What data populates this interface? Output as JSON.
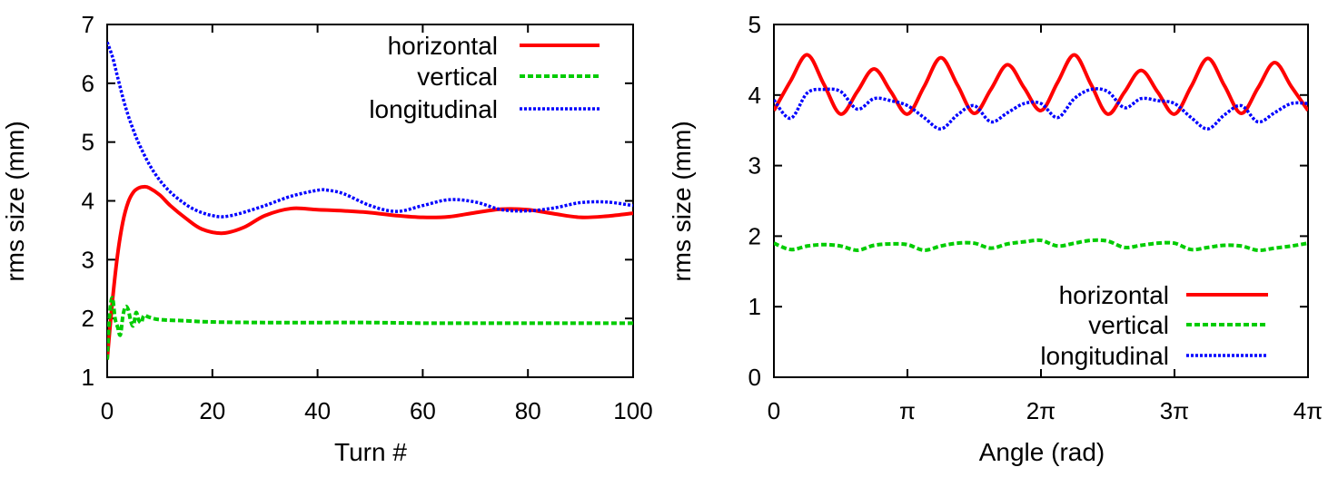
{
  "chart_data": [
    {
      "type": "line",
      "xlabel": "Turn #",
      "ylabel": "rms size (mm)",
      "xlim": [
        0,
        100
      ],
      "ylim": [
        1,
        7
      ],
      "xticks": [
        0,
        20,
        40,
        60,
        80,
        100
      ],
      "xtick_labels": [
        "0",
        "20",
        "40",
        "60",
        "80",
        "100"
      ],
      "yticks": [
        1,
        2,
        3,
        4,
        5,
        6,
        7
      ],
      "ytick_labels": [
        "1",
        "2",
        "3",
        "4",
        "5",
        "6",
        "7"
      ],
      "legend_position": "top-right",
      "series": [
        {
          "name": "horizontal",
          "color": "#ff0000",
          "style": "solid",
          "x": [
            0,
            1,
            2,
            3,
            4,
            5,
            6,
            7,
            8,
            10,
            12,
            15,
            18,
            22,
            26,
            30,
            35,
            40,
            45,
            50,
            55,
            60,
            65,
            70,
            75,
            80,
            85,
            90,
            95,
            100
          ],
          "y": [
            1.3,
            2.3,
            3.1,
            3.65,
            3.98,
            4.15,
            4.22,
            4.24,
            4.22,
            4.1,
            3.92,
            3.7,
            3.52,
            3.45,
            3.55,
            3.75,
            3.87,
            3.85,
            3.83,
            3.8,
            3.75,
            3.72,
            3.73,
            3.8,
            3.86,
            3.85,
            3.78,
            3.72,
            3.74,
            3.79
          ]
        },
        {
          "name": "vertical",
          "color": "#00cc00",
          "style": "dashed",
          "x": [
            0,
            0.5,
            1,
            1.5,
            2,
            2.5,
            3,
            3.5,
            4,
            4.5,
            5,
            5.5,
            6,
            6.5,
            7,
            8,
            10,
            15,
            20,
            30,
            40,
            50,
            60,
            70,
            80,
            90,
            100
          ],
          "y": [
            1.3,
            2.1,
            2.35,
            2.0,
            1.85,
            1.72,
            2.05,
            2.2,
            2.15,
            1.95,
            1.88,
            2.1,
            1.97,
            1.93,
            2.05,
            2.02,
            1.98,
            1.96,
            1.94,
            1.93,
            1.93,
            1.93,
            1.92,
            1.92,
            1.92,
            1.92,
            1.92
          ]
        },
        {
          "name": "longitudinal",
          "color": "#0000ff",
          "style": "dotted",
          "x": [
            0,
            1,
            2,
            3,
            4,
            5,
            6,
            8,
            10,
            12,
            14,
            16,
            18,
            20,
            22,
            25,
            30,
            35,
            40,
            42,
            45,
            50,
            55,
            60,
            65,
            70,
            75,
            80,
            85,
            90,
            95,
            100
          ],
          "y": [
            6.7,
            6.45,
            6.1,
            5.75,
            5.45,
            5.2,
            4.98,
            4.62,
            4.35,
            4.15,
            4.0,
            3.88,
            3.8,
            3.75,
            3.73,
            3.78,
            3.92,
            4.08,
            4.18,
            4.18,
            4.12,
            3.92,
            3.82,
            3.92,
            4.02,
            3.98,
            3.85,
            3.83,
            3.88,
            3.97,
            3.98,
            3.92
          ]
        }
      ]
    },
    {
      "type": "line",
      "xlabel": "Angle (rad)",
      "ylabel": "rms size (mm)",
      "xlim": [
        0,
        4
      ],
      "x_units": "multiples of pi",
      "ylim": [
        0,
        5
      ],
      "xticks": [
        0,
        1,
        2,
        3,
        4
      ],
      "xtick_labels": [
        "0",
        "π",
        "2π",
        "3π",
        "4π"
      ],
      "yticks": [
        0,
        1,
        2,
        3,
        4,
        5
      ],
      "ytick_labels": [
        "0",
        "1",
        "2",
        "3",
        "4",
        "5"
      ],
      "legend_position": "bottom-right",
      "series": [
        {
          "name": "horizontal",
          "color": "#ff0000",
          "style": "solid",
          "x": [
            0,
            0.125,
            0.25,
            0.375,
            0.5,
            0.625,
            0.75,
            0.875,
            1.0,
            1.125,
            1.25,
            1.375,
            1.5,
            1.625,
            1.75,
            1.875,
            2.0,
            2.125,
            2.25,
            2.375,
            2.5,
            2.625,
            2.75,
            2.875,
            3.0,
            3.125,
            3.25,
            3.375,
            3.5,
            3.625,
            3.75,
            3.875,
            4.0
          ],
          "y": [
            3.78,
            4.2,
            4.57,
            4.15,
            3.73,
            4.05,
            4.37,
            4.05,
            3.73,
            4.12,
            4.53,
            4.14,
            3.74,
            4.08,
            4.43,
            4.1,
            3.78,
            4.18,
            4.57,
            4.15,
            3.73,
            4.04,
            4.35,
            4.04,
            3.73,
            4.12,
            4.52,
            4.13,
            3.74,
            4.1,
            4.46,
            4.12,
            3.78
          ]
        },
        {
          "name": "vertical",
          "color": "#00cc00",
          "style": "dashed",
          "x": [
            0,
            0.125,
            0.25,
            0.375,
            0.5,
            0.625,
            0.75,
            0.875,
            1.0,
            1.125,
            1.25,
            1.375,
            1.5,
            1.625,
            1.75,
            1.875,
            2.0,
            2.125,
            2.25,
            2.375,
            2.5,
            2.625,
            2.75,
            2.875,
            3.0,
            3.125,
            3.25,
            3.375,
            3.5,
            3.625,
            3.75,
            3.875,
            4.0
          ],
          "y": [
            1.9,
            1.81,
            1.86,
            1.88,
            1.86,
            1.8,
            1.87,
            1.89,
            1.88,
            1.8,
            1.86,
            1.9,
            1.9,
            1.83,
            1.89,
            1.92,
            1.94,
            1.86,
            1.9,
            1.94,
            1.93,
            1.84,
            1.87,
            1.9,
            1.9,
            1.81,
            1.84,
            1.87,
            1.86,
            1.8,
            1.83,
            1.86,
            1.9
          ]
        },
        {
          "name": "longitudinal",
          "color": "#0000ff",
          "style": "dotted",
          "x": [
            0,
            0.125,
            0.25,
            0.375,
            0.5,
            0.625,
            0.75,
            0.875,
            1.0,
            1.125,
            1.25,
            1.375,
            1.5,
            1.625,
            1.75,
            1.875,
            2.0,
            2.125,
            2.25,
            2.375,
            2.5,
            2.625,
            2.75,
            2.875,
            3.0,
            3.125,
            3.25,
            3.375,
            3.5,
            3.625,
            3.75,
            3.875,
            4.0
          ],
          "y": [
            3.93,
            3.67,
            4.03,
            4.08,
            4.05,
            3.8,
            3.95,
            3.92,
            3.85,
            3.68,
            3.52,
            3.72,
            3.85,
            3.62,
            3.75,
            3.88,
            3.88,
            3.68,
            3.95,
            4.08,
            4.05,
            3.82,
            3.95,
            3.92,
            3.88,
            3.68,
            3.52,
            3.72,
            3.85,
            3.62,
            3.75,
            3.88,
            3.88
          ]
        }
      ]
    }
  ]
}
